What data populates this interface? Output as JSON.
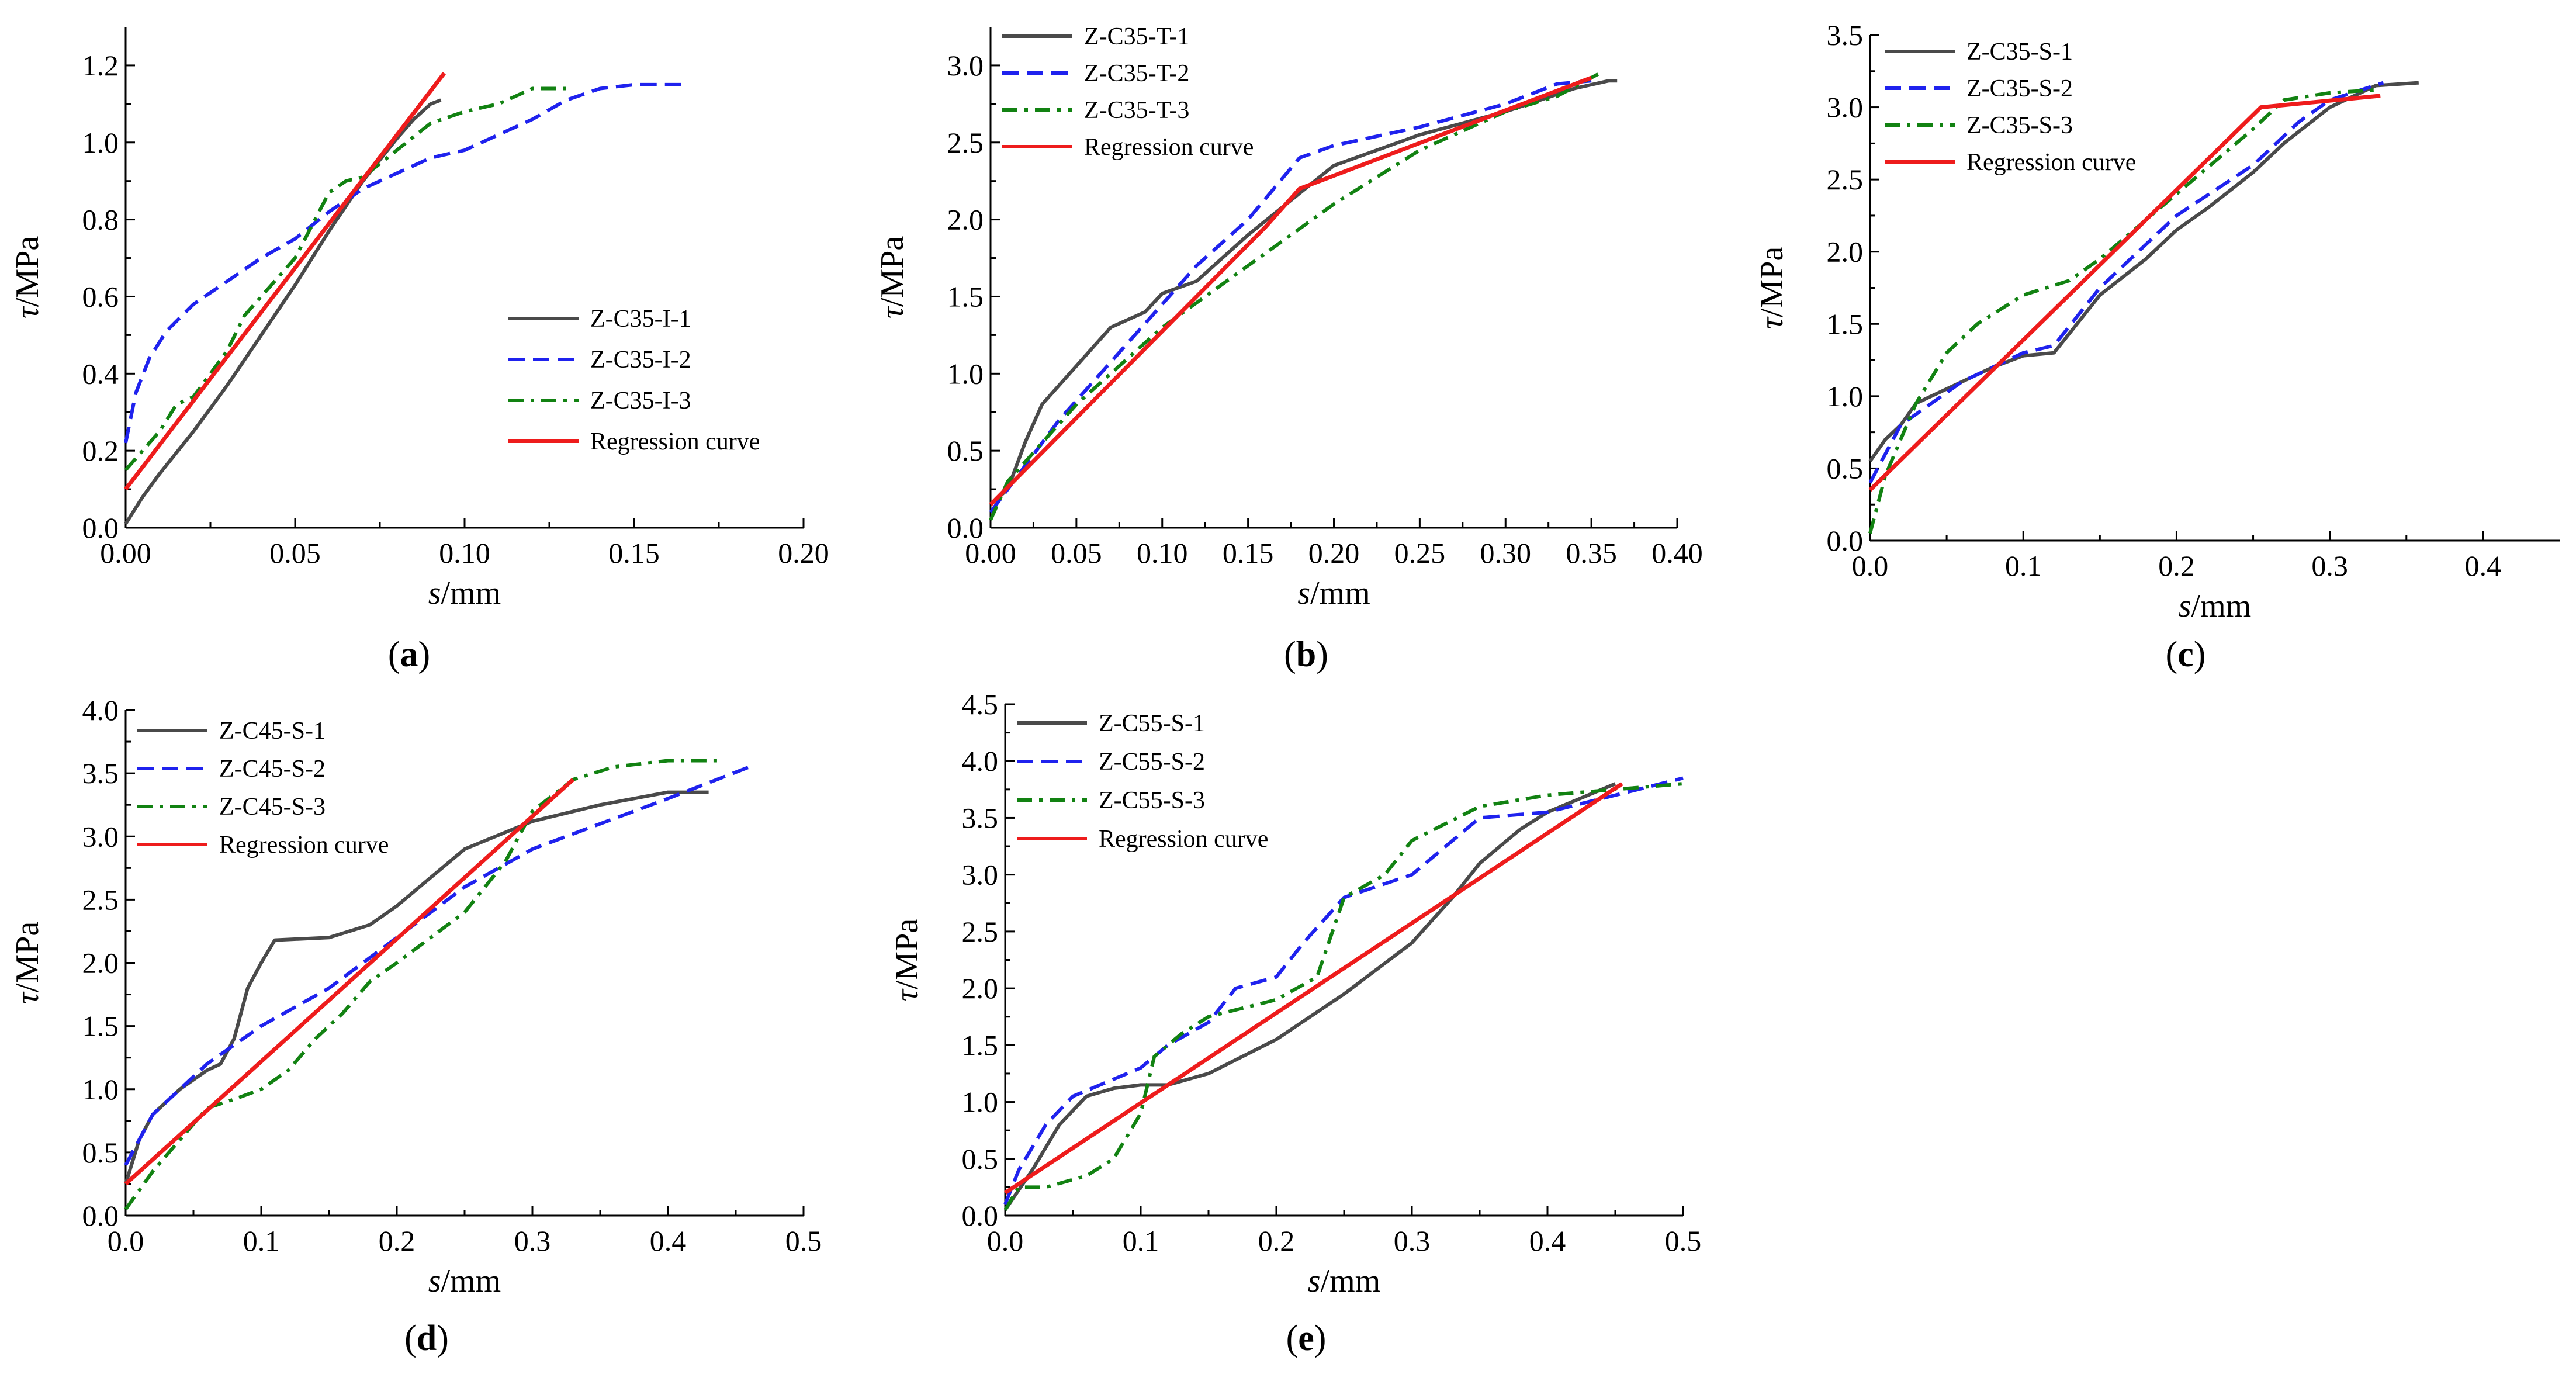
{
  "figure": {
    "colors": {
      "series1": "#4a4a4a",
      "series2": "#1f22ee",
      "series3": "#128212",
      "regression": "#ee1c1c"
    }
  },
  "chart_data": [
    {
      "id": "a",
      "type": "line",
      "caption": "a",
      "xlabel": "s",
      "xunit": "/mm",
      "ylabel": "τ",
      "yunit": "/MPa",
      "xlim": [
        0,
        0.2
      ],
      "ylim": [
        0,
        1.3
      ],
      "xticks": [
        0,
        0.05,
        0.1,
        0.15,
        0.2
      ],
      "xtick_labels": [
        "0.00",
        "0.05",
        "0.10",
        "0.15",
        "0.20"
      ],
      "yticks": [
        0,
        0.2,
        0.4,
        0.6,
        0.8,
        1.0,
        1.2
      ],
      "ytick_labels": [
        "0.0",
        "0.2",
        "0.4",
        "0.6",
        "0.8",
        "1.0",
        "1.2"
      ],
      "legend_position": "center-right",
      "series": [
        {
          "name": "Z-C35-I-1",
          "style": "solid",
          "x": [
            0,
            0.005,
            0.01,
            0.02,
            0.03,
            0.04,
            0.05,
            0.06,
            0.07,
            0.08,
            0.085,
            0.09,
            0.093
          ],
          "y": [
            0.01,
            0.08,
            0.14,
            0.25,
            0.37,
            0.5,
            0.63,
            0.77,
            0.9,
            1.01,
            1.06,
            1.1,
            1.11
          ]
        },
        {
          "name": "Z-C35-I-2",
          "style": "dashed",
          "x": [
            0,
            0.003,
            0.007,
            0.012,
            0.02,
            0.03,
            0.04,
            0.05,
            0.06,
            0.07,
            0.08,
            0.09,
            0.1,
            0.11,
            0.12,
            0.13,
            0.14,
            0.15,
            0.166
          ],
          "y": [
            0.22,
            0.35,
            0.44,
            0.51,
            0.58,
            0.64,
            0.7,
            0.75,
            0.82,
            0.88,
            0.92,
            0.96,
            0.98,
            1.02,
            1.06,
            1.11,
            1.14,
            1.15,
            1.15
          ]
        },
        {
          "name": "Z-C35-I-3",
          "style": "dashdot",
          "x": [
            0,
            0.01,
            0.015,
            0.02,
            0.03,
            0.035,
            0.04,
            0.05,
            0.06,
            0.065,
            0.07,
            0.08,
            0.09,
            0.1,
            0.11,
            0.115,
            0.12,
            0.13
          ],
          "y": [
            0.15,
            0.25,
            0.32,
            0.34,
            0.46,
            0.55,
            0.6,
            0.7,
            0.87,
            0.9,
            0.91,
            0.98,
            1.05,
            1.08,
            1.1,
            1.12,
            1.14,
            1.14
          ]
        },
        {
          "name": "Regression curve",
          "style": "regression",
          "x": [
            0,
            0.094
          ],
          "y": [
            0.1,
            1.18
          ]
        }
      ]
    },
    {
      "id": "b",
      "type": "line",
      "caption": "b",
      "xlabel": "s",
      "xunit": "/mm",
      "ylabel": "τ",
      "yunit": "/MPa",
      "xlim": [
        0,
        0.4
      ],
      "ylim": [
        0,
        3.25
      ],
      "xticks": [
        0,
        0.05,
        0.1,
        0.15,
        0.2,
        0.25,
        0.3,
        0.35,
        0.4
      ],
      "xtick_labels": [
        "0.00",
        "0.05",
        "0.10",
        "0.15",
        "0.20",
        "0.25",
        "0.30",
        "0.35",
        "0.40"
      ],
      "yticks": [
        0,
        0.5,
        1.0,
        1.5,
        2.0,
        2.5,
        3.0
      ],
      "ytick_labels": [
        "0.0",
        "0.5",
        "1.0",
        "1.5",
        "2.0",
        "2.5",
        "3.0"
      ],
      "legend_position": "top-left",
      "series": [
        {
          "name": "Z-C35-T-1",
          "style": "solid",
          "x": [
            0,
            0.01,
            0.02,
            0.03,
            0.05,
            0.07,
            0.09,
            0.1,
            0.12,
            0.15,
            0.2,
            0.25,
            0.3,
            0.34,
            0.36,
            0.365
          ],
          "y": [
            0.15,
            0.25,
            0.55,
            0.8,
            1.05,
            1.3,
            1.4,
            1.52,
            1.6,
            1.9,
            2.35,
            2.55,
            2.7,
            2.85,
            2.9,
            2.9
          ]
        },
        {
          "name": "Z-C35-T-2",
          "style": "dashed",
          "x": [
            0,
            0.01,
            0.02,
            0.04,
            0.06,
            0.08,
            0.1,
            0.12,
            0.15,
            0.18,
            0.2,
            0.25,
            0.3,
            0.33,
            0.35
          ],
          "y": [
            0.1,
            0.25,
            0.4,
            0.7,
            0.95,
            1.2,
            1.45,
            1.7,
            2.0,
            2.4,
            2.48,
            2.6,
            2.75,
            2.88,
            2.9
          ]
        },
        {
          "name": "Z-C35-T-3",
          "style": "dashdot",
          "x": [
            0,
            0.01,
            0.03,
            0.05,
            0.08,
            0.1,
            0.15,
            0.2,
            0.25,
            0.3,
            0.33,
            0.355
          ],
          "y": [
            0.05,
            0.3,
            0.55,
            0.8,
            1.1,
            1.3,
            1.7,
            2.1,
            2.45,
            2.7,
            2.8,
            2.95
          ]
        },
        {
          "name": "Regression curve",
          "style": "regression",
          "x": [
            0,
            0.16,
            0.18,
            0.35
          ],
          "y": [
            0.15,
            1.95,
            2.2,
            2.92
          ]
        }
      ]
    },
    {
      "id": "c",
      "type": "line",
      "caption": "c",
      "xlabel": "s",
      "xunit": "/mm",
      "ylabel": "τ",
      "yunit": "/MPa",
      "xlim": [
        0,
        0.45
      ],
      "ylim": [
        0,
        3.5
      ],
      "xticks": [
        0,
        0.1,
        0.2,
        0.3,
        0.4
      ],
      "xtick_labels": [
        "0.0",
        "0.1",
        "0.2",
        "0.3",
        "0.4"
      ],
      "yticks": [
        0,
        0.5,
        1.0,
        1.5,
        2.0,
        2.5,
        3.0,
        3.5
      ],
      "ytick_labels": [
        "0.0",
        "0.5",
        "1.0",
        "1.5",
        "2.0",
        "2.5",
        "3.0",
        "3.5"
      ],
      "legend_position": "top-left",
      "series": [
        {
          "name": "Z-C35-S-1",
          "style": "solid",
          "x": [
            0,
            0.01,
            0.02,
            0.03,
            0.05,
            0.07,
            0.08,
            0.1,
            0.12,
            0.15,
            0.18,
            0.2,
            0.22,
            0.25,
            0.27,
            0.3,
            0.33,
            0.358
          ],
          "y": [
            0.55,
            0.7,
            0.8,
            0.95,
            1.05,
            1.15,
            1.2,
            1.28,
            1.3,
            1.7,
            1.95,
            2.15,
            2.3,
            2.55,
            2.75,
            3.0,
            3.15,
            3.17
          ]
        },
        {
          "name": "Z-C35-S-2",
          "style": "dashed",
          "x": [
            0,
            0.02,
            0.04,
            0.06,
            0.08,
            0.1,
            0.12,
            0.15,
            0.2,
            0.25,
            0.28,
            0.3,
            0.335
          ],
          "y": [
            0.4,
            0.8,
            0.95,
            1.1,
            1.2,
            1.3,
            1.35,
            1.75,
            2.25,
            2.6,
            2.9,
            3.05,
            3.17
          ]
        },
        {
          "name": "Z-C35-S-3",
          "style": "dashdot",
          "x": [
            0,
            0.01,
            0.02,
            0.03,
            0.05,
            0.07,
            0.1,
            0.13,
            0.15,
            0.2,
            0.25,
            0.27,
            0.3,
            0.33
          ],
          "y": [
            0.05,
            0.45,
            0.7,
            0.95,
            1.3,
            1.5,
            1.7,
            1.8,
            1.95,
            2.4,
            2.85,
            3.05,
            3.1,
            3.12
          ]
        },
        {
          "name": "Regression curve",
          "style": "regression",
          "x": [
            0,
            0.255,
            0.333
          ],
          "y": [
            0.35,
            3.0,
            3.08
          ]
        }
      ]
    },
    {
      "id": "d",
      "type": "line",
      "caption": "d",
      "xlabel": "s",
      "xunit": "/mm",
      "ylabel": "τ",
      "yunit": "/MPa",
      "xlim": [
        0,
        0.5
      ],
      "ylim": [
        0,
        4.0
      ],
      "xticks": [
        0,
        0.1,
        0.2,
        0.3,
        0.4,
        0.5
      ],
      "xtick_labels": [
        "0.0",
        "0.1",
        "0.2",
        "0.3",
        "0.4",
        "0.5"
      ],
      "yticks": [
        0,
        0.5,
        1.0,
        1.5,
        2.0,
        2.5,
        3.0,
        3.5,
        4.0
      ],
      "ytick_labels": [
        "0.0",
        "0.5",
        "1.0",
        "1.5",
        "2.0",
        "2.5",
        "3.0",
        "3.5",
        "4.0"
      ],
      "legend_position": "top-left",
      "series": [
        {
          "name": "Z-C45-S-1",
          "style": "solid",
          "x": [
            0,
            0.01,
            0.02,
            0.04,
            0.06,
            0.07,
            0.08,
            0.09,
            0.1,
            0.11,
            0.15,
            0.18,
            0.2,
            0.25,
            0.3,
            0.35,
            0.4,
            0.43
          ],
          "y": [
            0.25,
            0.6,
            0.8,
            1.0,
            1.15,
            1.2,
            1.4,
            1.8,
            2.0,
            2.18,
            2.2,
            2.3,
            2.45,
            2.9,
            3.12,
            3.25,
            3.35,
            3.35
          ]
        },
        {
          "name": "Z-C45-S-2",
          "style": "dashed",
          "x": [
            0,
            0.01,
            0.02,
            0.04,
            0.06,
            0.08,
            0.1,
            0.15,
            0.2,
            0.25,
            0.3,
            0.35,
            0.4,
            0.46
          ],
          "y": [
            0.4,
            0.6,
            0.8,
            1.0,
            1.2,
            1.35,
            1.5,
            1.8,
            2.2,
            2.6,
            2.9,
            3.1,
            3.3,
            3.55
          ]
        },
        {
          "name": "Z-C45-S-3",
          "style": "dashdot",
          "x": [
            0,
            0.02,
            0.04,
            0.06,
            0.08,
            0.1,
            0.12,
            0.14,
            0.16,
            0.18,
            0.2,
            0.25,
            0.28,
            0.3,
            0.33,
            0.36,
            0.4,
            0.44
          ],
          "y": [
            0.05,
            0.35,
            0.6,
            0.85,
            0.92,
            1.0,
            1.15,
            1.4,
            1.6,
            1.85,
            2.0,
            2.4,
            2.8,
            3.2,
            3.45,
            3.55,
            3.6,
            3.6
          ]
        },
        {
          "name": "Regression curve",
          "style": "regression",
          "x": [
            0,
            0.33
          ],
          "y": [
            0.25,
            3.45
          ]
        }
      ]
    },
    {
      "id": "e",
      "type": "line",
      "caption": "e",
      "xlabel": "s",
      "xunit": "/mm",
      "ylabel": "τ",
      "yunit": "/MPa",
      "xlim": [
        0,
        0.5
      ],
      "ylim": [
        0,
        4.5
      ],
      "xticks": [
        0,
        0.1,
        0.2,
        0.3,
        0.4,
        0.5
      ],
      "xtick_labels": [
        "0.0",
        "0.1",
        "0.2",
        "0.3",
        "0.4",
        "0.5"
      ],
      "yticks": [
        0,
        0.5,
        1.0,
        1.5,
        2.0,
        2.5,
        3.0,
        3.5,
        4.0,
        4.5
      ],
      "ytick_labels": [
        "0.0",
        "0.5",
        "1.0",
        "1.5",
        "2.0",
        "2.5",
        "3.0",
        "3.5",
        "4.0",
        "4.5"
      ],
      "legend_position": "top-left",
      "series": [
        {
          "name": "Z-C55-S-1",
          "style": "solid",
          "x": [
            0,
            0.02,
            0.04,
            0.06,
            0.08,
            0.1,
            0.12,
            0.15,
            0.2,
            0.25,
            0.3,
            0.33,
            0.35,
            0.38,
            0.4,
            0.45
          ],
          "y": [
            0.05,
            0.4,
            0.8,
            1.05,
            1.12,
            1.15,
            1.15,
            1.25,
            1.55,
            1.95,
            2.4,
            2.8,
            3.1,
            3.4,
            3.55,
            3.8
          ]
        },
        {
          "name": "Z-C55-S-2",
          "style": "dashed",
          "x": [
            0,
            0.01,
            0.03,
            0.05,
            0.07,
            0.1,
            0.12,
            0.15,
            0.17,
            0.2,
            0.22,
            0.25,
            0.3,
            0.35,
            0.4,
            0.45,
            0.5
          ],
          "y": [
            0.1,
            0.4,
            0.8,
            1.05,
            1.15,
            1.3,
            1.5,
            1.7,
            2.0,
            2.1,
            2.4,
            2.8,
            3.0,
            3.5,
            3.55,
            3.7,
            3.85
          ]
        },
        {
          "name": "Z-C55-S-3",
          "style": "dashdot",
          "x": [
            0,
            0.01,
            0.03,
            0.06,
            0.08,
            0.1,
            0.11,
            0.13,
            0.15,
            0.2,
            0.23,
            0.25,
            0.28,
            0.3,
            0.35,
            0.4,
            0.45,
            0.5
          ],
          "y": [
            0.05,
            0.25,
            0.25,
            0.35,
            0.5,
            0.9,
            1.4,
            1.6,
            1.75,
            1.9,
            2.1,
            2.8,
            3.0,
            3.3,
            3.6,
            3.7,
            3.75,
            3.8
          ]
        },
        {
          "name": "Regression curve",
          "style": "regression",
          "x": [
            0,
            0.455
          ],
          "y": [
            0.2,
            3.8
          ]
        }
      ]
    }
  ]
}
